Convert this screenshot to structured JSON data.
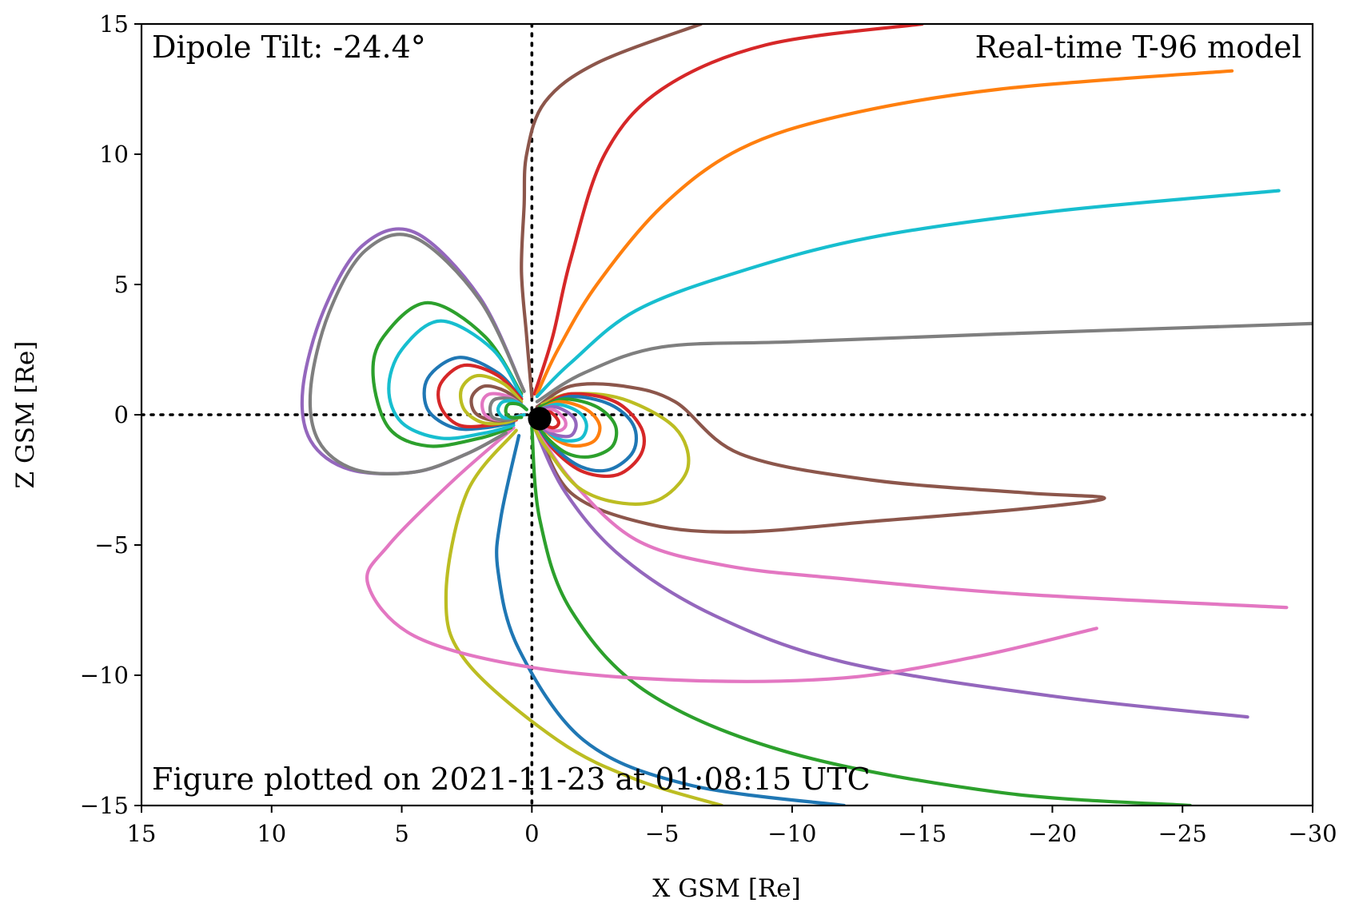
{
  "chart_data": {
    "type": "line",
    "title": "",
    "xlabel": "X GSM [Re]",
    "ylabel": "Z GSM [Re]",
    "xlim": [
      15,
      -30
    ],
    "ylim": [
      -15,
      15
    ],
    "xticks": [
      15,
      10,
      5,
      0,
      -5,
      -10,
      -15,
      -20,
      -25,
      -30
    ],
    "yticks": [
      15,
      10,
      5,
      0,
      -5,
      -10,
      -15
    ],
    "xtick_labels": [
      "15",
      "10",
      "5",
      "0",
      "−5",
      "−10",
      "−15",
      "−20",
      "−25",
      "−30"
    ],
    "ytick_labels": [
      "15",
      "10",
      "5",
      "0",
      "−5",
      "−10",
      "−15"
    ],
    "grid": false,
    "reference_lines": [
      {
        "axis": "x",
        "value": 0,
        "style": "dotted",
        "color": "#000000"
      },
      {
        "axis": "y",
        "value": 0,
        "style": "dotted",
        "color": "#000000"
      }
    ],
    "annotations": {
      "top_left": "Dipole Tilt: -24.4°",
      "top_right": "Real-time T-96 model",
      "bottom_left": "Figure plotted on 2021-11-23 at 01:08:15 UTC"
    },
    "earth": {
      "x": -0.3,
      "z": -0.15,
      "radius": 0.45,
      "color": "#000000"
    },
    "series": [
      {
        "color": "#8c564b",
        "points": [
          [
            0,
            0.7
          ],
          [
            0.2,
            3
          ],
          [
            0.4,
            5.5
          ],
          [
            0.3,
            8
          ],
          [
            0.2,
            10
          ],
          [
            -0.5,
            12
          ],
          [
            -2.5,
            13.5
          ],
          [
            -6.5,
            15
          ]
        ]
      },
      {
        "color": "#d62728",
        "points": [
          [
            -0.1,
            0.8
          ],
          [
            -0.8,
            3
          ],
          [
            -1.5,
            6
          ],
          [
            -2.8,
            10
          ],
          [
            -5,
            12.5
          ],
          [
            -9,
            14.2
          ],
          [
            -15,
            15
          ]
        ]
      },
      {
        "color": "#ff7f0e",
        "points": [
          [
            -0.2,
            0.8
          ],
          [
            -1,
            2.5
          ],
          [
            -2.5,
            5
          ],
          [
            -5,
            8
          ],
          [
            -8,
            10.2
          ],
          [
            -12,
            11.5
          ],
          [
            -18,
            12.5
          ],
          [
            -26.9,
            13.2
          ]
        ]
      },
      {
        "color": "#17becf",
        "points": [
          [
            -0.2,
            0.7
          ],
          [
            -1.5,
            2
          ],
          [
            -4,
            4
          ],
          [
            -8,
            5.5
          ],
          [
            -13,
            6.8
          ],
          [
            -20,
            7.8
          ],
          [
            -28.7,
            8.6
          ]
        ]
      },
      {
        "color": "#7f7f7f",
        "points": [
          [
            -0.2,
            0.5
          ],
          [
            -2,
            1.6
          ],
          [
            -5,
            2.6
          ],
          [
            -10,
            2.8
          ],
          [
            -18,
            3.1
          ],
          [
            -30,
            3.5
          ]
        ]
      },
      {
        "color": "#8c564b",
        "points": [
          [
            -0.2,
            0.3
          ],
          [
            -1.5,
            1.1
          ],
          [
            -3.5,
            1.1
          ],
          [
            -5.5,
            0.5
          ],
          [
            -8,
            -1.5
          ],
          [
            -13,
            -2.5
          ],
          [
            -19,
            -3
          ],
          [
            -22,
            -3.2
          ],
          [
            -19,
            -3.6
          ],
          [
            -13,
            -4.1
          ],
          [
            -8,
            -4.5
          ],
          [
            -4.5,
            -4.2
          ],
          [
            -1.5,
            -3
          ],
          [
            -0.2,
            -0.5
          ]
        ]
      },
      {
        "color": "#e377c2",
        "points": [
          [
            -0.1,
            -0.4
          ],
          [
            -1.5,
            -2.5
          ],
          [
            -4,
            -4.8
          ],
          [
            -7.5,
            -5.8
          ],
          [
            -12,
            -6.3
          ],
          [
            -19,
            -6.9
          ],
          [
            -29,
            -7.4
          ]
        ]
      },
      {
        "color": "#9467bd",
        "points": [
          [
            -0.1,
            -0.5
          ],
          [
            -1.3,
            -3
          ],
          [
            -3.5,
            -5.5
          ],
          [
            -7,
            -7.7
          ],
          [
            -12,
            -9.5
          ],
          [
            -20,
            -10.8
          ],
          [
            -27.5,
            -11.6
          ]
        ]
      },
      {
        "color": "#2ca02c",
        "points": [
          [
            0,
            -0.5
          ],
          [
            -0.3,
            -4
          ],
          [
            -1.5,
            -7.5
          ],
          [
            -4.5,
            -10.7
          ],
          [
            -10,
            -13
          ],
          [
            -18,
            -14.5
          ],
          [
            -25.3,
            -15
          ]
        ]
      },
      {
        "color": "#1f77b4",
        "points": [
          [
            0.5,
            -0.8
          ],
          [
            1.2,
            -4
          ],
          [
            1.3,
            -6
          ],
          [
            0.5,
            -9
          ],
          [
            -2,
            -12.5
          ],
          [
            -6,
            -14.2
          ],
          [
            -12,
            -15
          ]
        ]
      },
      {
        "color": "#bcbd22",
        "points": [
          [
            0.6,
            -0.6
          ],
          [
            2.5,
            -3
          ],
          [
            3.3,
            -7
          ],
          [
            2.5,
            -9.5
          ],
          [
            -1,
            -12.5
          ],
          [
            -4,
            -14
          ],
          [
            -7.3,
            -15
          ]
        ]
      },
      {
        "color": "#e377c2",
        "points": [
          [
            0.7,
            -0.5
          ],
          [
            3,
            -2.5
          ],
          [
            5.5,
            -5
          ],
          [
            6.3,
            -6.5
          ],
          [
            4.5,
            -8.5
          ],
          [
            0,
            -9.7
          ],
          [
            -6,
            -10.2
          ],
          [
            -12,
            -10.1
          ],
          [
            -17,
            -9.3
          ],
          [
            -21.7,
            -8.2
          ]
        ]
      },
      {
        "color": "#9467bd",
        "points": [
          [
            0.3,
            0.9
          ],
          [
            2,
            4.5
          ],
          [
            4.5,
            7
          ],
          [
            6.5,
            6.5
          ],
          [
            8,
            4
          ],
          [
            8.8,
            1
          ],
          [
            8.5,
            -1
          ],
          [
            7,
            -2.1
          ],
          [
            4.5,
            -2.2
          ],
          [
            2.5,
            -1.5
          ],
          [
            1,
            -0.7
          ]
        ]
      },
      {
        "color": "#7f7f7f",
        "points": [
          [
            0.3,
            0.9
          ],
          [
            2,
            4.4
          ],
          [
            4.5,
            6.8
          ],
          [
            6.4,
            6.3
          ],
          [
            7.8,
            3.9
          ],
          [
            8.5,
            1
          ],
          [
            8.2,
            -1
          ],
          [
            6.8,
            -2.1
          ],
          [
            4.5,
            -2.2
          ],
          [
            2.5,
            -1.5
          ],
          [
            1,
            -0.7
          ]
        ]
      },
      {
        "color": "#2ca02c",
        "points": [
          [
            0.4,
            0.8
          ],
          [
            1.8,
            3
          ],
          [
            4,
            4.3
          ],
          [
            5.7,
            3
          ],
          [
            6.1,
            1.5
          ],
          [
            5.5,
            -0.5
          ],
          [
            4,
            -1.2
          ],
          [
            2,
            -0.9
          ],
          [
            0.8,
            -0.5
          ]
        ]
      },
      {
        "color": "#17becf",
        "points": [
          [
            0.4,
            0.7
          ],
          [
            1.5,
            2.5
          ],
          [
            3.5,
            3.6
          ],
          [
            5,
            2.5
          ],
          [
            5.5,
            1
          ],
          [
            5,
            -0.3
          ],
          [
            3.5,
            -0.9
          ],
          [
            1.8,
            -0.7
          ],
          [
            0.7,
            -0.4
          ]
        ]
      },
      {
        "color": "#1f77b4",
        "points": [
          [
            0.4,
            0.6
          ],
          [
            1.3,
            1.6
          ],
          [
            2.8,
            2.2
          ],
          [
            4,
            1.4
          ],
          [
            4,
            0.2
          ],
          [
            3,
            -0.5
          ],
          [
            1.8,
            -0.5
          ],
          [
            0.7,
            -0.3
          ]
        ]
      },
      {
        "color": "#d62728",
        "points": [
          [
            0.4,
            0.6
          ],
          [
            1.3,
            1.5
          ],
          [
            2.6,
            1.9
          ],
          [
            3.5,
            1.2
          ],
          [
            3.5,
            0.3
          ],
          [
            2.8,
            -0.4
          ],
          [
            1.6,
            -0.4
          ],
          [
            0.6,
            -0.2
          ]
        ]
      },
      {
        "color": "#bcbd22",
        "points": [
          [
            0.4,
            0.5
          ],
          [
            1.1,
            1.2
          ],
          [
            2.1,
            1.5
          ],
          [
            2.7,
            1
          ],
          [
            2.6,
            0.2
          ],
          [
            1.9,
            -0.3
          ],
          [
            1,
            -0.3
          ],
          [
            0.5,
            -0.1
          ]
        ]
      },
      {
        "color": "#8c564b",
        "points": [
          [
            0.4,
            0.4
          ],
          [
            1,
            0.9
          ],
          [
            1.8,
            1.1
          ],
          [
            2.3,
            0.7
          ],
          [
            2.2,
            0.1
          ],
          [
            1.6,
            -0.2
          ],
          [
            0.9,
            -0.2
          ],
          [
            0.4,
            0
          ]
        ]
      },
      {
        "color": "#e377c2",
        "points": [
          [
            0.3,
            0.3
          ],
          [
            0.9,
            0.7
          ],
          [
            1.6,
            0.8
          ],
          [
            1.9,
            0.5
          ],
          [
            1.8,
            0
          ],
          [
            1.3,
            -0.2
          ],
          [
            0.7,
            -0.1
          ],
          [
            0.3,
            0
          ]
        ]
      },
      {
        "color": "#7f7f7f",
        "points": [
          [
            0.3,
            0.3
          ],
          [
            0.8,
            0.6
          ],
          [
            1.4,
            0.6
          ],
          [
            1.6,
            0.3
          ],
          [
            1.5,
            -0.1
          ],
          [
            1,
            -0.2
          ],
          [
            0.5,
            -0.1
          ]
        ]
      },
      {
        "color": "#17becf",
        "points": [
          [
            0.2,
            0.2
          ],
          [
            0.6,
            0.5
          ],
          [
            1.1,
            0.5
          ],
          [
            1.3,
            0.2
          ],
          [
            1.1,
            -0.1
          ],
          [
            0.7,
            -0.1
          ],
          [
            0.3,
            0
          ]
        ]
      },
      {
        "color": "#2ca02c",
        "points": [
          [
            0.2,
            0.2
          ],
          [
            0.5,
            0.4
          ],
          [
            0.9,
            0.4
          ],
          [
            1,
            0.1
          ],
          [
            0.8,
            -0.1
          ],
          [
            0.4,
            -0.1
          ]
        ]
      },
      {
        "color": "#bcbd22",
        "points": [
          [
            -0.4,
            0.4
          ],
          [
            -1.5,
            0.8
          ],
          [
            -3.5,
            0.6
          ],
          [
            -5.5,
            -0.5
          ],
          [
            -6,
            -2
          ],
          [
            -5,
            -3.2
          ],
          [
            -3.5,
            -3.4
          ],
          [
            -1.8,
            -2.8
          ],
          [
            -0.5,
            -1.2
          ],
          [
            -0.1,
            -0.5
          ]
        ]
      },
      {
        "color": "#d62728",
        "points": [
          [
            -0.4,
            0.3
          ],
          [
            -1.5,
            0.8
          ],
          [
            -3.2,
            0.5
          ],
          [
            -4.2,
            -0.5
          ],
          [
            -4.2,
            -1.5
          ],
          [
            -3.3,
            -2.3
          ],
          [
            -2,
            -2.2
          ],
          [
            -0.9,
            -1.4
          ],
          [
            -0.2,
            -0.4
          ]
        ]
      },
      {
        "color": "#1f77b4",
        "points": [
          [
            -0.4,
            0.3
          ],
          [
            -1.5,
            0.7
          ],
          [
            -3,
            0.4
          ],
          [
            -3.9,
            -0.4
          ],
          [
            -3.9,
            -1.4
          ],
          [
            -3,
            -2.1
          ],
          [
            -1.9,
            -2
          ],
          [
            -0.8,
            -1.2
          ],
          [
            -0.2,
            -0.4
          ]
        ]
      },
      {
        "color": "#2ca02c",
        "points": [
          [
            -0.3,
            0.3
          ],
          [
            -1.3,
            0.6
          ],
          [
            -2.5,
            0.3
          ],
          [
            -3.2,
            -0.4
          ],
          [
            -3.1,
            -1.2
          ],
          [
            -2.3,
            -1.6
          ],
          [
            -1.4,
            -1.5
          ],
          [
            -0.6,
            -0.9
          ],
          [
            -0.2,
            -0.3
          ]
        ]
      },
      {
        "color": "#ff7f0e",
        "points": [
          [
            -0.3,
            0.2
          ],
          [
            -1.1,
            0.5
          ],
          [
            -2.1,
            0.2
          ],
          [
            -2.6,
            -0.4
          ],
          [
            -2.4,
            -1
          ],
          [
            -1.7,
            -1.2
          ],
          [
            -1,
            -1
          ],
          [
            -0.4,
            -0.5
          ]
        ]
      },
      {
        "color": "#17becf",
        "points": [
          [
            -0.3,
            0.2
          ],
          [
            -1,
            0.4
          ],
          [
            -1.8,
            0.1
          ],
          [
            -2.1,
            -0.4
          ],
          [
            -1.9,
            -0.9
          ],
          [
            -1.3,
            -1
          ],
          [
            -0.8,
            -0.8
          ],
          [
            -0.3,
            -0.4
          ]
        ]
      },
      {
        "color": "#9467bd",
        "points": [
          [
            -0.3,
            0.2
          ],
          [
            -0.9,
            0.3
          ],
          [
            -1.5,
            0
          ],
          [
            -1.7,
            -0.4
          ],
          [
            -1.5,
            -0.8
          ],
          [
            -1,
            -0.8
          ],
          [
            -0.5,
            -0.6
          ]
        ]
      },
      {
        "color": "#e377c2",
        "points": [
          [
            -0.3,
            0.1
          ],
          [
            -0.8,
            0.2
          ],
          [
            -1.2,
            -0.1
          ],
          [
            -1.3,
            -0.4
          ],
          [
            -1.1,
            -0.6
          ],
          [
            -0.7,
            -0.6
          ],
          [
            -0.4,
            -0.4
          ]
        ]
      },
      {
        "color": "#d62728",
        "points": [
          [
            -0.3,
            0.1
          ],
          [
            -0.7,
            0.1
          ],
          [
            -1,
            -0.2
          ],
          [
            -1,
            -0.4
          ],
          [
            -0.8,
            -0.5
          ],
          [
            -0.5,
            -0.4
          ]
        ]
      }
    ]
  }
}
